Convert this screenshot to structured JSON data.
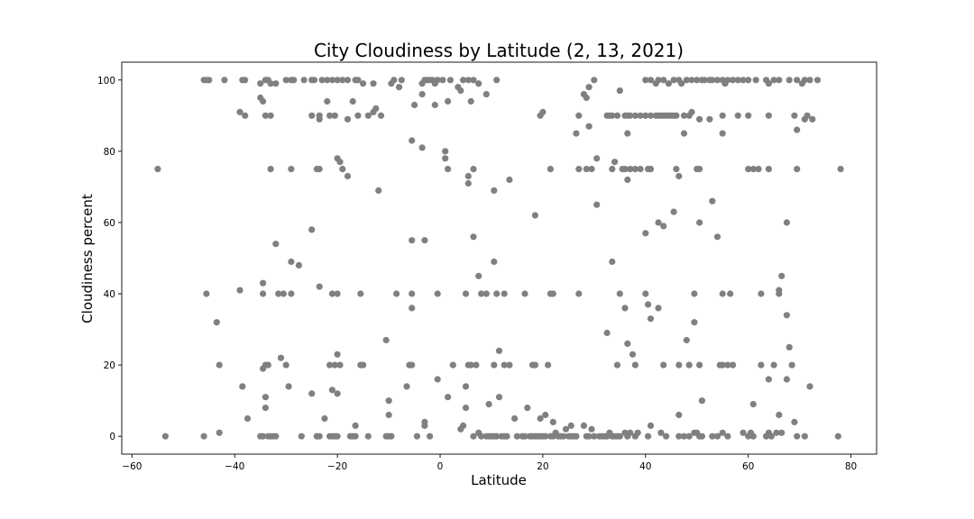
{
  "chart_data": {
    "type": "scatter",
    "title": "City Cloudiness by Latitude (2, 13, 2021)",
    "xlabel": "Latitude",
    "ylabel": "Cloudiness percent",
    "xlim": [
      -62,
      85
    ],
    "ylim": [
      -5,
      105
    ],
    "xticks": [
      -60,
      -40,
      -20,
      0,
      20,
      40,
      60,
      80
    ],
    "yticks": [
      0,
      20,
      40,
      60,
      80,
      100
    ],
    "grid": false,
    "marker_color": "#808080",
    "points": [
      [
        -46,
        100
      ],
      [
        -45.5,
        100
      ],
      [
        -45,
        100
      ],
      [
        -42,
        100
      ],
      [
        -38.5,
        100
      ],
      [
        -38,
        100
      ],
      [
        -35,
        99
      ],
      [
        -34,
        100
      ],
      [
        -33.5,
        100
      ],
      [
        -33,
        99
      ],
      [
        -32,
        99
      ],
      [
        -30,
        100
      ],
      [
        -29,
        100
      ],
      [
        -28.5,
        100
      ],
      [
        -26.5,
        100
      ],
      [
        -25,
        100
      ],
      [
        -24.5,
        100
      ],
      [
        -23,
        100
      ],
      [
        -22,
        100
      ],
      [
        -21,
        100
      ],
      [
        -20,
        100
      ],
      [
        -19,
        100
      ],
      [
        -18,
        100
      ],
      [
        -16.5,
        100
      ],
      [
        -16,
        100
      ],
      [
        -15,
        99
      ],
      [
        -13,
        99
      ],
      [
        -9.5,
        99
      ],
      [
        -9,
        100
      ],
      [
        -7.5,
        100
      ],
      [
        -3.5,
        99
      ],
      [
        -3,
        100
      ],
      [
        -2.5,
        100
      ],
      [
        -2,
        100
      ],
      [
        -1.5,
        100
      ],
      [
        -1,
        99
      ],
      [
        -0.5,
        100
      ],
      [
        0.5,
        100
      ],
      [
        2,
        100
      ],
      [
        4.5,
        100
      ],
      [
        5.5,
        100
      ],
      [
        6.5,
        100
      ],
      [
        7.5,
        99
      ],
      [
        11,
        100
      ],
      [
        29,
        98
      ],
      [
        30,
        100
      ],
      [
        40,
        100
      ],
      [
        41,
        100
      ],
      [
        42,
        99
      ],
      [
        42.5,
        100
      ],
      [
        43.5,
        100
      ],
      [
        44.5,
        99
      ],
      [
        45.5,
        100
      ],
      [
        46.5,
        100
      ],
      [
        47,
        99
      ],
      [
        48,
        100
      ],
      [
        49,
        100
      ],
      [
        50,
        100
      ],
      [
        51,
        100
      ],
      [
        51.5,
        100
      ],
      [
        52.5,
        100
      ],
      [
        53,
        100
      ],
      [
        54,
        100
      ],
      [
        55,
        100
      ],
      [
        55.5,
        99
      ],
      [
        56,
        100
      ],
      [
        57,
        100
      ],
      [
        58,
        100
      ],
      [
        59,
        100
      ],
      [
        60,
        100
      ],
      [
        61.5,
        100
      ],
      [
        63.5,
        100
      ],
      [
        64,
        99
      ],
      [
        65,
        100
      ],
      [
        66,
        100
      ],
      [
        68,
        100
      ],
      [
        69.5,
        100
      ],
      [
        70.5,
        99
      ],
      [
        71,
        100
      ],
      [
        72,
        100
      ],
      [
        73.5,
        100
      ],
      [
        -39,
        91
      ],
      [
        -38,
        90
      ],
      [
        -35,
        95
      ],
      [
        -34.5,
        94
      ],
      [
        -34,
        90
      ],
      [
        -33,
        90
      ],
      [
        -25,
        90
      ],
      [
        -23.5,
        89
      ],
      [
        -23.5,
        90
      ],
      [
        -22,
        94
      ],
      [
        -21.5,
        90
      ],
      [
        -20.5,
        90
      ],
      [
        -18,
        89
      ],
      [
        -17,
        94
      ],
      [
        -16,
        90
      ],
      [
        -14,
        90
      ],
      [
        -13,
        91
      ],
      [
        -12.5,
        92
      ],
      [
        -11.5,
        90
      ],
      [
        -8,
        98
      ],
      [
        -5,
        93
      ],
      [
        -3.5,
        96
      ],
      [
        -1,
        93
      ],
      [
        1.5,
        94
      ],
      [
        3.5,
        98
      ],
      [
        4,
        97
      ],
      [
        6,
        94
      ],
      [
        9,
        96
      ],
      [
        19.5,
        90
      ],
      [
        20,
        91
      ],
      [
        27,
        90
      ],
      [
        28,
        96
      ],
      [
        28.5,
        95
      ],
      [
        29,
        87
      ],
      [
        32.5,
        90
      ],
      [
        33,
        90
      ],
      [
        33.5,
        90
      ],
      [
        34.5,
        90
      ],
      [
        35,
        97
      ],
      [
        36,
        90
      ],
      [
        36.5,
        90
      ],
      [
        37,
        90
      ],
      [
        38,
        90
      ],
      [
        39,
        90
      ],
      [
        40,
        90
      ],
      [
        41,
        90
      ],
      [
        42,
        90
      ],
      [
        42.5,
        90
      ],
      [
        43,
        90
      ],
      [
        43.5,
        90
      ],
      [
        44,
        90
      ],
      [
        44.5,
        90
      ],
      [
        45,
        90
      ],
      [
        45.5,
        90
      ],
      [
        46,
        90
      ],
      [
        47.5,
        90
      ],
      [
        48.5,
        90
      ],
      [
        49,
        91
      ],
      [
        50.5,
        89
      ],
      [
        52.5,
        89
      ],
      [
        55,
        90
      ],
      [
        58,
        90
      ],
      [
        60,
        90
      ],
      [
        64,
        90
      ],
      [
        69,
        90
      ],
      [
        71,
        89
      ],
      [
        71.5,
        90
      ],
      [
        72.5,
        89
      ],
      [
        -55,
        75
      ],
      [
        -33,
        75
      ],
      [
        -29,
        75
      ],
      [
        -24,
        75
      ],
      [
        -23.5,
        75
      ],
      [
        -20,
        78
      ],
      [
        -19.5,
        77
      ],
      [
        -19,
        75
      ],
      [
        -18,
        73
      ],
      [
        -5.5,
        83
      ],
      [
        -3.5,
        81
      ],
      [
        1,
        80
      ],
      [
        1,
        78
      ],
      [
        1.5,
        75
      ],
      [
        5.5,
        73
      ],
      [
        5.5,
        71
      ],
      [
        6.5,
        75
      ],
      [
        10.5,
        69
      ],
      [
        13.5,
        72
      ],
      [
        21.5,
        75
      ],
      [
        26.5,
        85
      ],
      [
        27,
        75
      ],
      [
        28.5,
        75
      ],
      [
        29.5,
        75
      ],
      [
        30.5,
        78
      ],
      [
        33.5,
        75
      ],
      [
        34,
        77
      ],
      [
        35.5,
        75
      ],
      [
        36,
        75
      ],
      [
        36.5,
        72
      ],
      [
        36.5,
        85
      ],
      [
        37,
        75
      ],
      [
        38,
        75
      ],
      [
        39,
        75
      ],
      [
        40.5,
        75
      ],
      [
        41,
        75
      ],
      [
        47.5,
        85
      ],
      [
        46,
        75
      ],
      [
        46.5,
        73
      ],
      [
        50,
        75
      ],
      [
        50.5,
        75
      ],
      [
        55,
        85
      ],
      [
        60,
        75
      ],
      [
        61,
        75
      ],
      [
        62,
        75
      ],
      [
        64,
        75
      ],
      [
        69.5,
        75
      ],
      [
        69.5,
        86
      ],
      [
        78,
        75
      ],
      [
        -12,
        69
      ],
      [
        30.5,
        65
      ],
      [
        -32,
        54
      ],
      [
        -25,
        58
      ],
      [
        -5.5,
        55
      ],
      [
        -3,
        55
      ],
      [
        6.5,
        56
      ],
      [
        18.5,
        62
      ],
      [
        42.5,
        60
      ],
      [
        43.5,
        59
      ],
      [
        45.5,
        63
      ],
      [
        50.5,
        60
      ],
      [
        53,
        66
      ],
      [
        54,
        56
      ],
      [
        67.5,
        60
      ],
      [
        -39,
        41
      ],
      [
        -34.5,
        43
      ],
      [
        -34.5,
        40
      ],
      [
        -31.5,
        40
      ],
      [
        -30.5,
        40
      ],
      [
        -29,
        40
      ],
      [
        -29,
        49
      ],
      [
        -27.5,
        48
      ],
      [
        -23.5,
        42
      ],
      [
        -21,
        40
      ],
      [
        -20,
        40
      ],
      [
        -15.5,
        40
      ],
      [
        -8.5,
        40
      ],
      [
        -5.5,
        40
      ],
      [
        -5.5,
        36
      ],
      [
        -0.5,
        40
      ],
      [
        5,
        40
      ],
      [
        7.5,
        45
      ],
      [
        8,
        40
      ],
      [
        9,
        40
      ],
      [
        10.5,
        49
      ],
      [
        11,
        40
      ],
      [
        12.5,
        40
      ],
      [
        16.5,
        40
      ],
      [
        21.5,
        40
      ],
      [
        22,
        40
      ],
      [
        27,
        40
      ],
      [
        33.5,
        49
      ],
      [
        35,
        40
      ],
      [
        36,
        36
      ],
      [
        40,
        40
      ],
      [
        40,
        57
      ],
      [
        40.5,
        37
      ],
      [
        41,
        33
      ],
      [
        42.5,
        36
      ],
      [
        49.5,
        40
      ],
      [
        49.5,
        32
      ],
      [
        55,
        40
      ],
      [
        56.5,
        40
      ],
      [
        62.5,
        40
      ],
      [
        66,
        40
      ],
      [
        66,
        41
      ],
      [
        66.5,
        45
      ],
      [
        67.5,
        34
      ],
      [
        -45.5,
        40
      ],
      [
        -43.5,
        32
      ],
      [
        -43,
        20
      ],
      [
        -38.5,
        14
      ],
      [
        -37.5,
        5
      ],
      [
        -34.5,
        19
      ],
      [
        -34,
        20
      ],
      [
        -34,
        11
      ],
      [
        -34,
        8
      ],
      [
        -33.5,
        20
      ],
      [
        -31,
        22
      ],
      [
        -30,
        20
      ],
      [
        -29.5,
        14
      ],
      [
        -25,
        12
      ],
      [
        -24,
        0
      ],
      [
        -23.5,
        0
      ],
      [
        -22.5,
        5
      ],
      [
        -21.5,
        20
      ],
      [
        -21,
        13
      ],
      [
        -20.5,
        20
      ],
      [
        -20,
        23
      ],
      [
        -20,
        12
      ],
      [
        -19.5,
        20
      ],
      [
        -16.5,
        3
      ],
      [
        -15.5,
        20
      ],
      [
        -15,
        20
      ],
      [
        -10.5,
        27
      ],
      [
        -10,
        10
      ],
      [
        -10,
        6
      ],
      [
        -6.5,
        14
      ],
      [
        -6,
        20
      ],
      [
        -5.5,
        20
      ],
      [
        -3,
        4
      ],
      [
        -3,
        3
      ],
      [
        -0.5,
        16
      ],
      [
        1.5,
        11
      ],
      [
        2.5,
        20
      ],
      [
        4,
        2
      ],
      [
        4.5,
        3
      ],
      [
        5,
        8
      ],
      [
        5.5,
        20
      ],
      [
        5,
        14
      ],
      [
        6,
        20
      ],
      [
        7,
        20
      ],
      [
        9.5,
        9
      ],
      [
        10.5,
        20
      ],
      [
        11.5,
        11
      ],
      [
        11.5,
        24
      ],
      [
        12.5,
        20
      ],
      [
        13.5,
        20
      ],
      [
        14.5,
        5
      ],
      [
        17,
        8
      ],
      [
        18,
        20
      ],
      [
        18.5,
        20
      ],
      [
        19.5,
        5
      ],
      [
        20.5,
        6
      ],
      [
        21,
        20
      ],
      [
        22,
        4
      ],
      [
        22.5,
        1
      ],
      [
        23,
        0
      ],
      [
        24.5,
        2
      ],
      [
        25.5,
        3
      ],
      [
        28,
        3
      ],
      [
        29.5,
        2
      ],
      [
        32.5,
        29
      ],
      [
        34.5,
        20
      ],
      [
        36.5,
        26
      ],
      [
        37.5,
        23
      ],
      [
        38,
        20
      ],
      [
        41,
        3
      ],
      [
        43.5,
        20
      ],
      [
        46.5,
        6
      ],
      [
        46.5,
        20
      ],
      [
        48,
        27
      ],
      [
        48.5,
        20
      ],
      [
        50.5,
        20
      ],
      [
        51,
        10
      ],
      [
        54.5,
        20
      ],
      [
        55,
        20
      ],
      [
        56,
        20
      ],
      [
        57,
        20
      ],
      [
        61,
        9
      ],
      [
        62.5,
        20
      ],
      [
        64,
        16
      ],
      [
        65,
        20
      ],
      [
        66,
        6
      ],
      [
        67.5,
        16
      ],
      [
        68,
        25
      ],
      [
        68.5,
        20
      ],
      [
        69,
        4
      ],
      [
        72,
        14
      ],
      [
        -53.5,
        0
      ],
      [
        -46,
        0
      ],
      [
        -43,
        1
      ],
      [
        -35,
        0
      ],
      [
        -34.5,
        0
      ],
      [
        -33.5,
        0
      ],
      [
        -33,
        0
      ],
      [
        -32.5,
        0
      ],
      [
        -32,
        0
      ],
      [
        -27,
        0
      ],
      [
        -24,
        0
      ],
      [
        -21.5,
        0
      ],
      [
        -21,
        0
      ],
      [
        -20.5,
        0
      ],
      [
        -20,
        0
      ],
      [
        -17.5,
        0
      ],
      [
        -17,
        0
      ],
      [
        -16.5,
        0
      ],
      [
        -14,
        0
      ],
      [
        -10.5,
        0
      ],
      [
        -10,
        0
      ],
      [
        -9.5,
        0
      ],
      [
        -4.5,
        0
      ],
      [
        -2,
        0
      ],
      [
        6.5,
        0
      ],
      [
        7.5,
        1
      ],
      [
        8,
        0
      ],
      [
        9,
        0
      ],
      [
        9.5,
        0
      ],
      [
        10,
        0
      ],
      [
        10.5,
        0
      ],
      [
        11,
        0
      ],
      [
        12,
        0
      ],
      [
        12.5,
        0
      ],
      [
        13,
        0
      ],
      [
        15,
        0
      ],
      [
        16,
        0
      ],
      [
        16.5,
        0
      ],
      [
        17.5,
        0
      ],
      [
        18,
        0
      ],
      [
        18.5,
        0
      ],
      [
        19,
        0
      ],
      [
        19.5,
        0
      ],
      [
        20,
        0
      ],
      [
        20.5,
        0
      ],
      [
        21.5,
        0
      ],
      [
        22,
        0
      ],
      [
        23.5,
        0
      ],
      [
        24,
        0
      ],
      [
        25,
        0
      ],
      [
        25.5,
        0
      ],
      [
        26,
        0
      ],
      [
        26.5,
        0
      ],
      [
        28.5,
        0
      ],
      [
        29,
        0
      ],
      [
        30,
        0
      ],
      [
        31,
        0
      ],
      [
        31.5,
        0
      ],
      [
        32,
        0
      ],
      [
        32.5,
        0
      ],
      [
        33,
        1
      ],
      [
        33.5,
        0
      ],
      [
        34,
        0
      ],
      [
        34.5,
        0
      ],
      [
        35,
        0
      ],
      [
        36,
        1
      ],
      [
        36.5,
        0
      ],
      [
        37,
        1
      ],
      [
        38,
        0
      ],
      [
        38.5,
        1
      ],
      [
        40.5,
        0
      ],
      [
        43,
        1
      ],
      [
        44,
        0
      ],
      [
        46.5,
        0
      ],
      [
        47.5,
        0
      ],
      [
        48.5,
        0
      ],
      [
        49.5,
        1
      ],
      [
        50,
        1
      ],
      [
        50.5,
        0
      ],
      [
        51,
        0
      ],
      [
        53,
        0
      ],
      [
        54,
        0
      ],
      [
        55,
        1
      ],
      [
        56,
        0
      ],
      [
        59,
        1
      ],
      [
        60,
        0
      ],
      [
        60.5,
        1
      ],
      [
        61,
        0
      ],
      [
        63.5,
        0
      ],
      [
        64,
        1
      ],
      [
        64.5,
        0
      ],
      [
        65.5,
        1
      ],
      [
        66.5,
        1
      ],
      [
        69.5,
        0
      ],
      [
        71,
        0
      ],
      [
        77.5,
        0
      ]
    ]
  }
}
